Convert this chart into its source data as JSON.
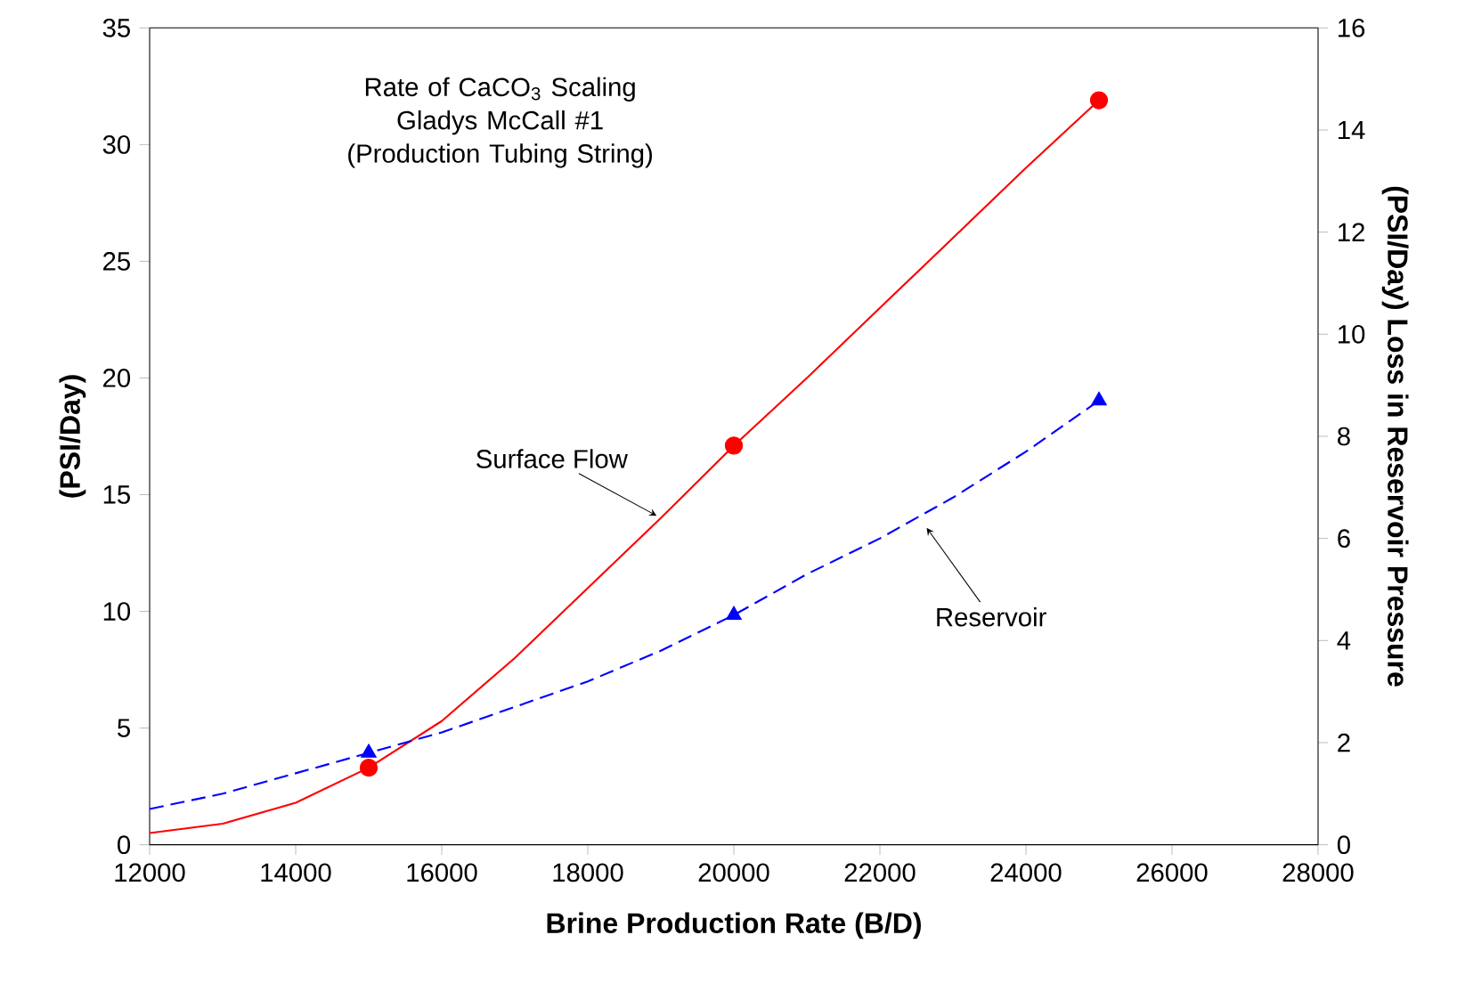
{
  "chart_data": {
    "type": "line",
    "title": "Rate of CaCO$_{3}$ Scaling",
    "subtitle": "Gladys McCall #1 (Production Tubing String)",
    "xlabel": "Brine Production Rate (B/D)",
    "ylabel": "(PSI/Day)",
    "y2label": "(PSI/Day) Loss in Reservoir Pressure",
    "xlim": [
      12000,
      28000
    ],
    "xticks": [
      12000,
      14000,
      16000,
      18000,
      20000,
      22000,
      24000,
      26000,
      28000
    ],
    "ylim": [
      0,
      35
    ],
    "yticks": [
      0,
      5,
      10,
      15,
      20,
      25,
      30,
      35
    ],
    "y2lim": [
      0,
      16
    ],
    "y2ticks": [
      0,
      2,
      4,
      6,
      8,
      10,
      12,
      14,
      16
    ],
    "series": [
      {
        "color": "#ff0000",
        "line_style": "solid",
        "marker": "none",
        "x": [
          12000,
          13000,
          14000,
          15000,
          16000,
          17000,
          18000,
          19000,
          20000,
          21000,
          22000,
          23000,
          24000,
          25000
        ],
        "values": [
          0.5,
          0.9,
          1.8,
          3.3,
          5.3,
          8.0,
          11.0,
          14.0,
          17.1,
          20.0,
          23.0,
          26.0,
          29.0,
          31.9
        ]
      },
      {
        "type": "scatter",
        "color": "#ff0000",
        "marker": "circle",
        "x": [
          15000,
          20000,
          25000
        ],
        "values": [
          3.3,
          17.1,
          31.9
        ]
      },
      {
        "axis": "y2",
        "color": "#0000ff",
        "line_style": "dashed",
        "marker": "none",
        "x": [
          12000,
          13000,
          14000,
          15000,
          16000,
          17000,
          18000,
          19000,
          20000,
          21000,
          22000,
          23000,
          24000,
          25000
        ],
        "values": [
          0.7,
          1.0,
          1.4,
          1.8,
          2.2,
          2.7,
          3.2,
          3.8,
          4.5,
          5.3,
          6.0,
          6.8,
          7.7,
          8.7
        ]
      },
      {
        "type": "scatter",
        "axis": "y2",
        "color": "#0000ff",
        "marker": "triangle",
        "x": [
          15000,
          20000,
          25000
        ],
        "values": [
          1.8,
          4.5,
          8.7
        ]
      }
    ],
    "annotations": [
      {
        "text": "Surface Flow",
        "x": 19000,
        "y": 14.0
      },
      "Reservoir"
    ]
  }
}
